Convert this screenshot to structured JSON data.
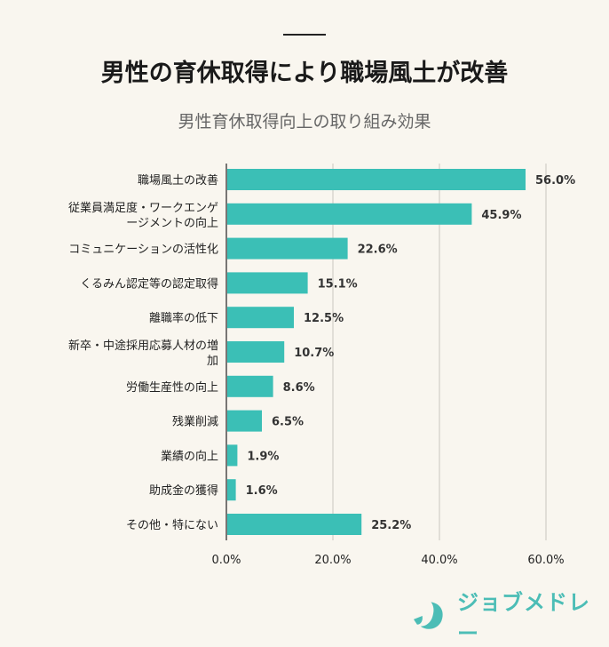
{
  "header": {
    "title": "男性の育休取得により職場風土が改善",
    "subtitle": "男性育休取得向上の取り組み効果"
  },
  "chart_data": {
    "type": "bar",
    "orientation": "horizontal",
    "title": "男性育休取得向上の取り組み効果",
    "categories": [
      "職場風土の改善",
      "従業員満足度・ワークエンゲージメントの向上",
      "コミュニケーションの活性化",
      "くるみん認定等の認定取得",
      "離職率の低下",
      "新卒・中途採用応募人材の増加",
      "労働生産性の向上",
      "残業削減",
      "業績の向上",
      "助成金の獲得",
      "その他・特にない"
    ],
    "category_lines": [
      [
        "職場風土の改善"
      ],
      [
        "従業員満足度・ワークエンゲ",
        "ージメントの向上"
      ],
      [
        "コミュニケーションの活性化"
      ],
      [
        "くるみん認定等の認定取得"
      ],
      [
        "離職率の低下"
      ],
      [
        "新卒・中途採用応募人材の増",
        "加"
      ],
      [
        "労働生産性の向上"
      ],
      [
        "残業削減"
      ],
      [
        "業績の向上"
      ],
      [
        "助成金の獲得"
      ],
      [
        "その他・特にない"
      ]
    ],
    "values": [
      56.0,
      45.9,
      22.6,
      15.1,
      12.5,
      10.7,
      8.6,
      6.5,
      1.9,
      1.6,
      25.2
    ],
    "value_labels": [
      "56.0%",
      "45.9%",
      "22.6%",
      "15.1%",
      "12.5%",
      "10.7%",
      "8.6%",
      "6.5%",
      "1.9%",
      "1.6%",
      "25.2%"
    ],
    "xlim": [
      0,
      60
    ],
    "x_ticks": [
      0,
      20,
      40,
      60
    ],
    "x_tick_labels": [
      "0.0%",
      "20.0%",
      "40.0%",
      "60.0%"
    ],
    "grid": true,
    "bar_color": "#3bbfb6"
  },
  "logo": {
    "text": "ジョブメドレー",
    "color": "#4cbdb6"
  }
}
